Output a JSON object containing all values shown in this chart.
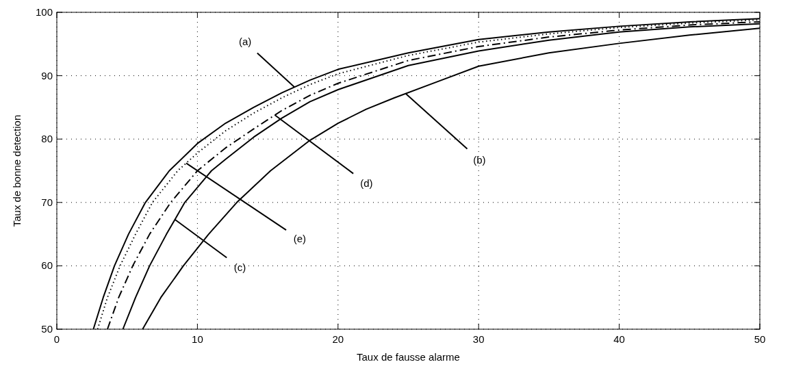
{
  "chart_data": {
    "type": "line",
    "xlabel": "Taux de fausse alarme",
    "ylabel": "Taux de bonne detection",
    "xlim": [
      0,
      50
    ],
    "xticks": [
      0,
      10,
      20,
      30,
      40,
      50
    ],
    "ylim": [
      50,
      100
    ],
    "yticks": [
      50,
      60,
      70,
      80,
      90,
      100
    ],
    "grid": true,
    "series": [
      {
        "color": "#000000",
        "line_style": "solid",
        "x": [
          2.6,
          3.3,
          4.1,
          5.1,
          6.3,
          8,
          10,
          12,
          14,
          16,
          18,
          20,
          25,
          30,
          35,
          40,
          45,
          50
        ],
        "values": [
          50,
          55,
          60,
          65,
          70,
          75,
          79.3,
          82.5,
          85,
          87.3,
          89.3,
          91,
          93.6,
          95.7,
          96.9,
          97.8,
          98.5,
          99
        ]
      },
      {
        "color": "#000000",
        "line_style": "dotted",
        "x": [
          2.9,
          3.6,
          4.5,
          5.6,
          6.8,
          8.6,
          10,
          12,
          14,
          16,
          18,
          20,
          25,
          30,
          35,
          40,
          45,
          50
        ],
        "values": [
          50,
          55,
          60,
          65,
          70,
          75,
          77.8,
          81.3,
          84.1,
          86.5,
          88.6,
          90.3,
          93.2,
          95.3,
          96.6,
          97.6,
          98.3,
          98.8
        ]
      },
      {
        "color": "#000000",
        "line_style": "dashdot",
        "x": [
          3.6,
          4.4,
          5.4,
          6.6,
          8.1,
          10,
          12,
          14,
          16,
          18,
          20,
          25,
          30,
          35,
          40,
          45,
          50
        ],
        "values": [
          50,
          55,
          60,
          65,
          70,
          75,
          78.6,
          81.6,
          84.5,
          86.9,
          88.8,
          92.4,
          94.6,
          96.1,
          97.2,
          98,
          98.5
        ]
      },
      {
        "color": "#000000",
        "line_style": "solid",
        "x": [
          4.7,
          5.6,
          6.6,
          7.8,
          9.1,
          11,
          12,
          14,
          16,
          18,
          20,
          25,
          30,
          35,
          40,
          45,
          50
        ],
        "values": [
          50,
          55,
          60,
          65,
          70,
          75,
          76.8,
          80.3,
          83.3,
          85.9,
          87.8,
          91.6,
          93.9,
          95.6,
          96.9,
          97.7,
          98.2
        ]
      },
      {
        "color": "#000000",
        "line_style": "solid",
        "x": [
          6.1,
          7.4,
          9,
          10.8,
          12.8,
          15.2,
          18,
          20,
          22,
          24,
          27,
          30,
          35,
          40,
          45,
          50
        ],
        "values": [
          50,
          55,
          60,
          65,
          70,
          75,
          79.8,
          82.5,
          84.7,
          86.5,
          89,
          91.5,
          93.6,
          95.1,
          96.4,
          97.5
        ]
      }
    ],
    "annotations": [
      {
        "text": "(a)",
        "x": 16.9,
        "y": 88.2
      },
      {
        "text": "(b)",
        "x": 24.8,
        "y": 87.2
      },
      {
        "text": "(c)",
        "x": 8.4,
        "y": 67.3
      },
      {
        "text": "(d)",
        "x": 15.5,
        "y": 83.8
      },
      {
        "text": "(e)",
        "x": 9.2,
        "y": 76.2
      }
    ]
  }
}
